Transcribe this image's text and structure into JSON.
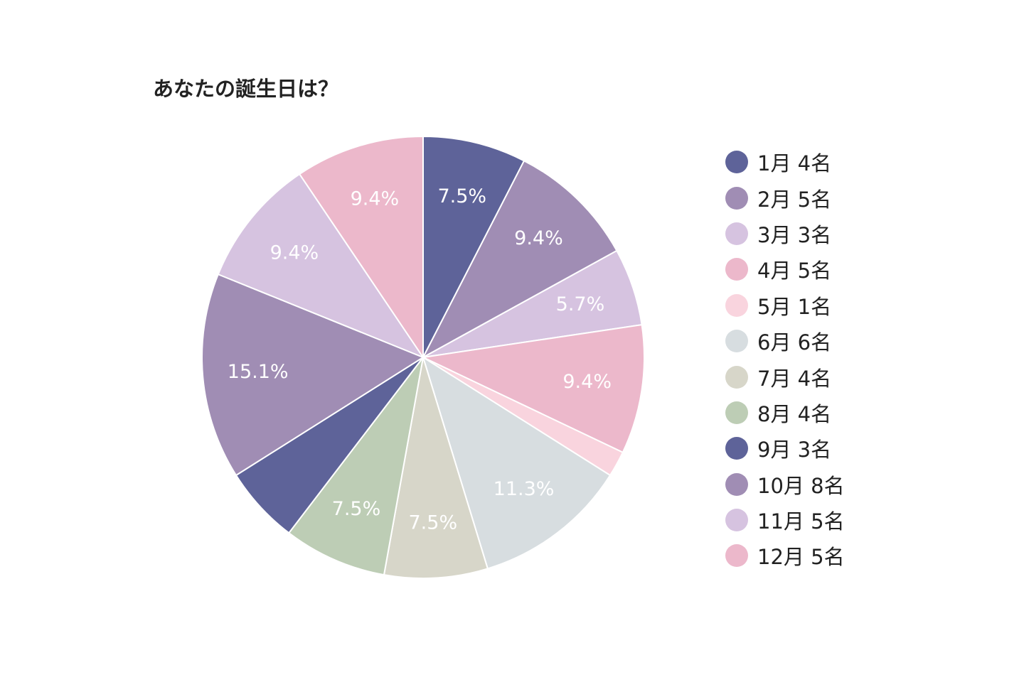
{
  "chart_data": {
    "type": "pie",
    "title": "あなたの誕生日は？",
    "categories": [
      "1月",
      "2月",
      "3月",
      "4月",
      "5月",
      "6月",
      "7月",
      "8月",
      "9月",
      "10月",
      "11月",
      "12月"
    ],
    "values": [
      4,
      5,
      3,
      5,
      1,
      6,
      4,
      4,
      3,
      8,
      5,
      5
    ],
    "unit": "名",
    "legend_entries": [
      "1月 4名",
      "2月 5名",
      "3月 3名",
      "4月 5名",
      "5月 1名",
      "6月 6名",
      "7月 4名",
      "8月 4名",
      "9月 3名",
      "10月 8名",
      "11月 5名",
      "12月 5名"
    ],
    "slice_labels": [
      "7.5%",
      "9.4%",
      "5.7%",
      "9.4%",
      "",
      "11.3%",
      "7.5%",
      "7.5%",
      "",
      "15.1%",
      "9.4%",
      "9.4%"
    ],
    "colors": [
      "#5e6399",
      "#a08db4",
      "#d6c3e0",
      "#ecb8cb",
      "#f9d4de",
      "#d7dde0",
      "#d7d6c9",
      "#bdcdb5",
      "#5e6399",
      "#a08db4",
      "#d6c3e0",
      "#ecb8cb"
    ],
    "start_angle": "12 o'clock",
    "direction": "clockwise",
    "legend_position": "right"
  }
}
